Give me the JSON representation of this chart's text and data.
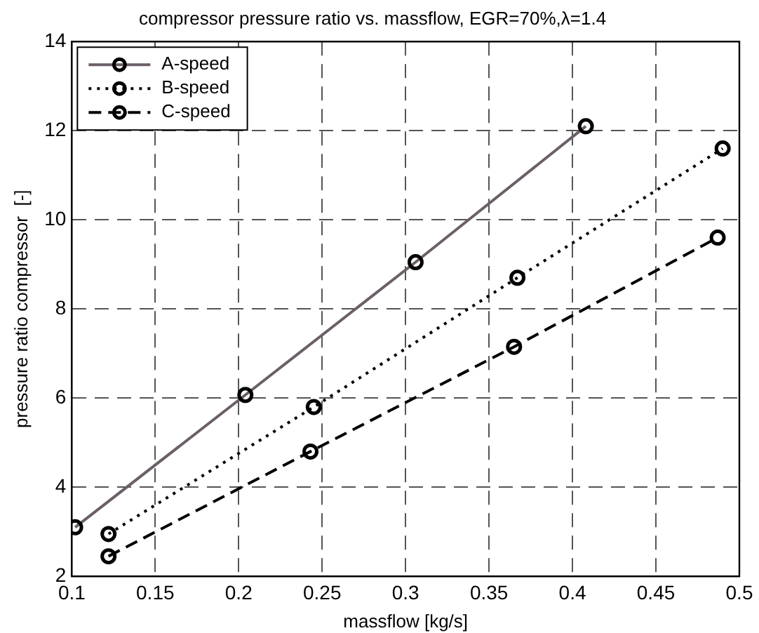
{
  "chart_data": {
    "type": "line",
    "title": "compressor pressure ratio vs. massflow, EGR=70%,λ=1.4",
    "xlabel": "massflow [kg/s]",
    "ylabel": "pressure ratio compressor  [-]",
    "xlim": [
      0.1,
      0.5
    ],
    "xticks": [
      0.1,
      0.15,
      0.2,
      0.25,
      0.3,
      0.35,
      0.4,
      0.45,
      0.5
    ],
    "ylim": [
      2,
      14
    ],
    "yticks": [
      2,
      4,
      6,
      8,
      10,
      12,
      14
    ],
    "grid": true,
    "legend": "top left",
    "marker": "circle",
    "series": [
      {
        "name": "A-speed",
        "color": "#6b5f68",
        "line_style": "solid",
        "x": [
          0.102,
          0.204,
          0.306,
          0.408
        ],
        "values": [
          3.1,
          6.07,
          9.05,
          12.1
        ]
      },
      {
        "name": "B-speed",
        "color": "#000000",
        "line_style": "dotted",
        "x": [
          0.122,
          0.245,
          0.367,
          0.49
        ],
        "values": [
          2.95,
          5.8,
          8.7,
          11.6
        ]
      },
      {
        "name": "C-speed",
        "color": "#000000",
        "line_style": "dashed",
        "x": [
          0.122,
          0.243,
          0.365,
          0.487
        ],
        "values": [
          2.45,
          4.8,
          7.15,
          9.6
        ]
      }
    ]
  }
}
